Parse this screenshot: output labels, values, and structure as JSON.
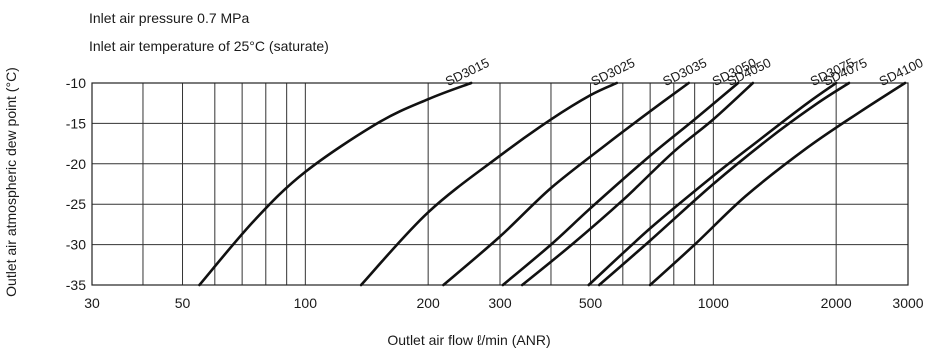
{
  "chart_data": {
    "type": "line",
    "notes": [
      "Inlet air pressure 0.7 MPa",
      "Inlet air temperature of 25°C (saturate)"
    ],
    "xlabel": "Outlet air flow ℓ/min (ANR)",
    "ylabel": "Outlet air atmospheric dew point (°C)",
    "xscale": "log",
    "xlim": [
      30,
      3000
    ],
    "ylim": [
      -35,
      -10
    ],
    "xticks": [
      30,
      50,
      100,
      200,
      300,
      500,
      1000,
      2000,
      3000
    ],
    "xtick_labels": [
      "30",
      "50",
      "100",
      "200",
      "300",
      "500",
      "1000",
      "2000",
      "3000"
    ],
    "yticks": [
      -10,
      -15,
      -20,
      -25,
      -30,
      -35
    ],
    "ytick_labels": [
      "-10",
      "-15",
      "-20",
      "-25",
      "-30",
      "-35"
    ],
    "xgrid": [
      30,
      40,
      50,
      60,
      70,
      80,
      90,
      100,
      200,
      300,
      400,
      500,
      600,
      700,
      800,
      900,
      1000,
      2000,
      3000
    ],
    "grid": true,
    "series": [
      {
        "name": "SD3015",
        "points": [
          [
            55,
            -35
          ],
          [
            75,
            -27
          ],
          [
            100,
            -21
          ],
          [
            150,
            -15
          ],
          [
            200,
            -12
          ],
          [
            255,
            -10
          ]
        ]
      },
      {
        "name": "SD3025",
        "points": [
          [
            137,
            -35
          ],
          [
            200,
            -26
          ],
          [
            300,
            -19
          ],
          [
            400,
            -14.5
          ],
          [
            500,
            -11.5
          ],
          [
            580,
            -10
          ]
        ]
      },
      {
        "name": "SD3035",
        "points": [
          [
            218,
            -35
          ],
          [
            300,
            -29
          ],
          [
            400,
            -23
          ],
          [
            550,
            -17.5
          ],
          [
            700,
            -13.5
          ],
          [
            870,
            -10
          ]
        ]
      },
      {
        "name": "SD3050",
        "points": [
          [
            305,
            -35
          ],
          [
            400,
            -30
          ],
          [
            500,
            -25.5
          ],
          [
            700,
            -19
          ],
          [
            900,
            -14.5
          ],
          [
            1150,
            -10
          ]
        ]
      },
      {
        "name": "SD4050",
        "points": [
          [
            340,
            -35
          ],
          [
            450,
            -30
          ],
          [
            600,
            -24.5
          ],
          [
            800,
            -18.5
          ],
          [
            1000,
            -14.5
          ],
          [
            1250,
            -10
          ]
        ]
      },
      {
        "name": "SD3075",
        "points": [
          [
            495,
            -35
          ],
          [
            700,
            -28
          ],
          [
            1000,
            -21.5
          ],
          [
            1300,
            -17
          ],
          [
            1700,
            -12.5
          ],
          [
            2000,
            -10
          ]
        ]
      },
      {
        "name": "SD4075",
        "points": [
          [
            525,
            -35
          ],
          [
            700,
            -29.5
          ],
          [
            1000,
            -22.5
          ],
          [
            1400,
            -16.5
          ],
          [
            1800,
            -12.5
          ],
          [
            2150,
            -10
          ]
        ]
      },
      {
        "name": "SD4100",
        "points": [
          [
            700,
            -35
          ],
          [
            900,
            -30
          ],
          [
            1200,
            -24
          ],
          [
            1700,
            -18
          ],
          [
            2300,
            -13.5
          ],
          [
            2950,
            -10
          ]
        ]
      }
    ]
  }
}
